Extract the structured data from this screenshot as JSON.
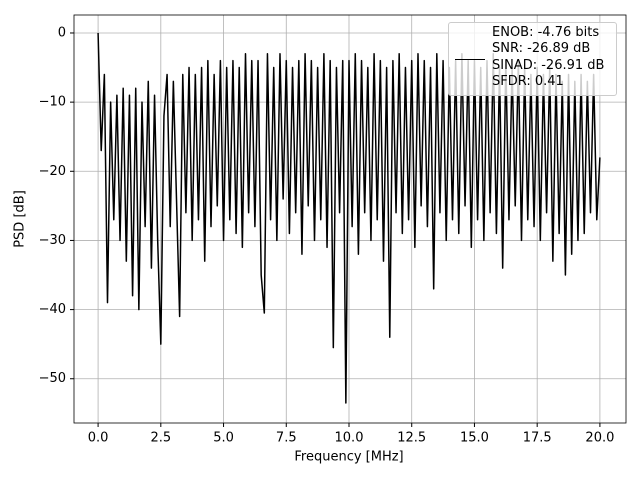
{
  "chart_data": {
    "type": "line",
    "xlabel": "Frequency [MHz]",
    "ylabel": "PSD [dB]",
    "xlim": [
      -0.96,
      21.04
    ],
    "ylim": [
      -56.4,
      2.6
    ],
    "xticks": [
      {
        "value": 0,
        "label": "0.0"
      },
      {
        "value": 2.5,
        "label": "2.5"
      },
      {
        "value": 5,
        "label": "5.0"
      },
      {
        "value": 7.5,
        "label": "7.5"
      },
      {
        "value": 10,
        "label": "10.0"
      },
      {
        "value": 12.5,
        "label": "12.5"
      },
      {
        "value": 15,
        "label": "15.0"
      },
      {
        "value": 17.5,
        "label": "17.5"
      },
      {
        "value": 20,
        "label": "20.0"
      }
    ],
    "yticks": [
      {
        "value": -50,
        "label": "−50"
      },
      {
        "value": -40,
        "label": "−40"
      },
      {
        "value": -30,
        "label": "−30"
      },
      {
        "value": -20,
        "label": "−20"
      },
      {
        "value": -10,
        "label": "−10"
      },
      0
    ],
    "grid": true,
    "legend": "upper right",
    "x": [
      0,
      0.125,
      0.25,
      0.375,
      0.5,
      0.625,
      0.75,
      0.875,
      1,
      1.125,
      1.25,
      1.375,
      1.5,
      1.625,
      1.75,
      1.875,
      2,
      2.125,
      2.25,
      2.375,
      2.5,
      2.625,
      2.75,
      2.875,
      3,
      3.125,
      3.25,
      3.375,
      3.5,
      3.625,
      3.75,
      3.875,
      4,
      4.125,
      4.25,
      4.375,
      4.5,
      4.625,
      4.75,
      4.875,
      5,
      5.125,
      5.25,
      5.375,
      5.5,
      5.625,
      5.75,
      5.875,
      6,
      6.125,
      6.25,
      6.375,
      6.5,
      6.625,
      6.75,
      6.875,
      7,
      7.125,
      7.25,
      7.375,
      7.5,
      7.625,
      7.75,
      7.875,
      8,
      8.125,
      8.25,
      8.375,
      8.5,
      8.625,
      8.75,
      8.875,
      9,
      9.125,
      9.25,
      9.375,
      9.5,
      9.625,
      9.75,
      9.875,
      10,
      10.125,
      10.25,
      10.375,
      10.5,
      10.625,
      10.75,
      10.875,
      11,
      11.125,
      11.25,
      11.375,
      11.5,
      11.625,
      11.75,
      11.875,
      12,
      12.125,
      12.25,
      12.375,
      12.5,
      12.625,
      12.75,
      12.875,
      13,
      13.125,
      13.25,
      13.375,
      13.5,
      13.625,
      13.75,
      13.875,
      14,
      14.125,
      14.25,
      14.375,
      14.5,
      14.625,
      14.75,
      14.875,
      15,
      15.125,
      15.25,
      15.375,
      15.5,
      15.625,
      15.75,
      15.875,
      16,
      16.125,
      16.25,
      16.375,
      16.5,
      16.625,
      16.75,
      16.875,
      17,
      17.125,
      17.25,
      17.375,
      17.5,
      17.625,
      17.75,
      17.875,
      18,
      18.125,
      18.25,
      18.375,
      18.5,
      18.625,
      18.75,
      18.875,
      19,
      19.125,
      19.25,
      19.375,
      19.5,
      19.625,
      19.75,
      19.875,
      20
    ],
    "series": [
      {
        "name": "ENOB: -4.76 bits\nSNR: -26.89 dB\nSINAD: -26.91 dB\nSFDR: 0.41",
        "color": "#000000",
        "values": [
          0,
          -17,
          -6,
          -39,
          -10,
          -27,
          -9,
          -30,
          -8,
          -33,
          -9,
          -38,
          -8,
          -40,
          -10,
          -28,
          -7,
          -34,
          -9,
          -30,
          -45,
          -12,
          -6,
          -28,
          -7,
          -24,
          -41,
          -6,
          -26,
          -5,
          -30,
          -6,
          -27,
          -5,
          -33,
          -4,
          -28,
          -6,
          -25,
          -4,
          -30,
          -5,
          -27,
          -4,
          -29,
          -5,
          -31,
          -3,
          -26,
          -4,
          -28,
          -4,
          -35,
          -40.5,
          -3,
          -27,
          -5,
          -30,
          -3,
          -24,
          -4,
          -29,
          -5,
          -26,
          -4,
          -32,
          -3,
          -25,
          -4,
          -30,
          -5,
          -27,
          -3,
          -31,
          -4,
          -45.5,
          -5,
          -26,
          -4,
          -53.5,
          -4,
          -28,
          -3,
          -32,
          -4,
          -26,
          -5,
          -30,
          -3,
          -27,
          -4,
          -33,
          -5,
          -44,
          -4,
          -26,
          -3,
          -29,
          -5,
          -27,
          -4,
          -31,
          -3,
          -25,
          -4,
          -28,
          -5,
          -37,
          -3,
          -26,
          -4,
          -30,
          -5,
          -27,
          -4,
          -29,
          -3,
          -25,
          -4,
          -31,
          -4,
          -27,
          -5,
          -30,
          -4,
          -26,
          -3,
          -29,
          -5,
          -34,
          -4,
          -27,
          -5,
          -25,
          -4,
          -30,
          -5,
          -27,
          -6,
          -28,
          -5,
          -30,
          -6,
          -26,
          -5,
          -33,
          -6,
          -29,
          -7,
          -35,
          -6,
          -32,
          -7,
          -30,
          -6,
          -29,
          -7,
          -26,
          -6,
          -27,
          -18
        ]
      }
    ]
  }
}
